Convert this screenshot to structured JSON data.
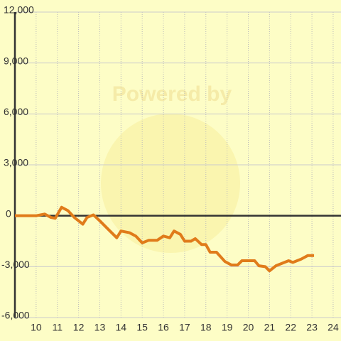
{
  "chart_data": {
    "type": "line",
    "watermark": "Powered by",
    "xlim": [
      9,
      24.37
    ],
    "xticks": [
      10,
      11,
      12,
      13,
      14,
      15,
      16,
      17,
      18,
      19,
      20,
      21,
      22,
      23,
      24
    ],
    "ylim": [
      -6000,
      12000
    ],
    "yticks": [
      {
        "value": -6000,
        "label": "-6,000"
      },
      {
        "value": -3000,
        "label": "-3,000"
      },
      0,
      {
        "value": 3000,
        "label": "3,000"
      },
      {
        "value": 6000,
        "label": "6,000"
      },
      {
        "value": 9000,
        "label": "9,000"
      },
      {
        "value": 12000,
        "label": "12,000"
      }
    ],
    "grid": true,
    "series": [
      {
        "color": "#e07b1a",
        "x": [
          9,
          10,
          10.4,
          10.7,
          10.9,
          11.2,
          11.5,
          11.8,
          12.2,
          12.4,
          12.7,
          13,
          13.4,
          13.8,
          14,
          14.4,
          14.7,
          15,
          15.3,
          15.7,
          16,
          16.3,
          16.5,
          16.8,
          17,
          17.3,
          17.5,
          17.8,
          18,
          18.2,
          18.5,
          18.9,
          19.2,
          19.5,
          19.7,
          20.3,
          20.5,
          20.8,
          21,
          21.3,
          21.7,
          21.9,
          22.1,
          22.5,
          22.8,
          23.1
        ],
        "values": [
          0,
          0,
          100,
          -100,
          -150,
          500,
          300,
          -100,
          -500,
          -100,
          50,
          -300,
          -800,
          -1300,
          -900,
          -1000,
          -1200,
          -1600,
          -1450,
          -1450,
          -1200,
          -1300,
          -900,
          -1100,
          -1500,
          -1500,
          -1350,
          -1700,
          -1700,
          -2150,
          -2150,
          -2700,
          -2900,
          -2900,
          -2650,
          -2650,
          -2950,
          -3000,
          -3250,
          -2950,
          -2750,
          -2650,
          -2750,
          -2550,
          -2350,
          -2350
        ]
      }
    ]
  }
}
